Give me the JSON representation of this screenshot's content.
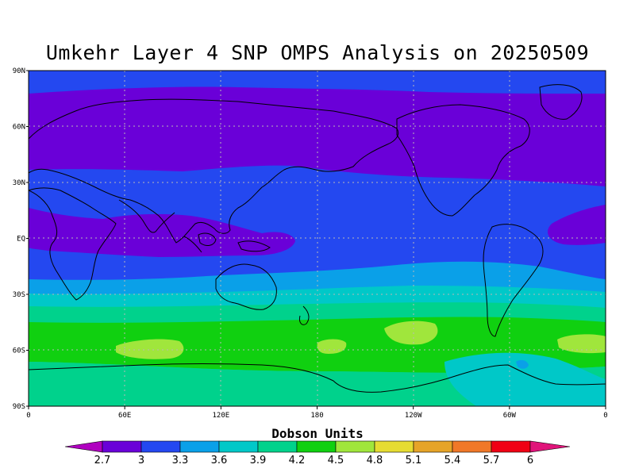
{
  "title": "Umkehr Layer 4 SNP OMPS Analysis on 20250509",
  "colorbar_title": "Dobson Units",
  "colors": {
    "c_lt27": "#b000c0",
    "c_27_30": "#6a00d8",
    "c_30_33": "#2448f0",
    "c_33_36": "#0aa0e8",
    "c_36_39": "#00c8c8",
    "c_39_42": "#00d28c",
    "c_42_45": "#10d010",
    "c_45_48": "#a0e63c",
    "c_48_51": "#e6dc32",
    "c_51_54": "#e6a428",
    "c_54_57": "#f07828",
    "c_57_60": "#f00014",
    "c_gt60": "#e0147a"
  },
  "chart_data": {
    "type": "heatmap",
    "title": "Umkehr Layer 4 SNP OMPS Analysis on 20250509",
    "colorbar": {
      "label": "Dobson Units",
      "levels": [
        "2.7",
        "3",
        "3.3",
        "3.6",
        "3.9",
        "4.2",
        "4.5",
        "4.8",
        "5.1",
        "5.4",
        "5.7",
        "6"
      ]
    },
    "x_ticks": [
      "0",
      "60E",
      "120E",
      "180",
      "120W",
      "60W",
      "0"
    ],
    "y_ticks": [
      "90N",
      "60N",
      "30N",
      "EQ",
      "30S",
      "60S",
      "90S"
    ],
    "xlim": [
      0,
      360
    ],
    "ylim": [
      -90,
      90
    ],
    "grid": true
  }
}
